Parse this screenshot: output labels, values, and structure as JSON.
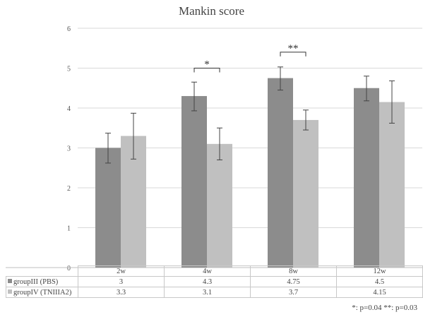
{
  "chart_data": {
    "type": "bar",
    "title": "Mankin score",
    "categories": [
      "2w",
      "4w",
      "8w",
      "12w"
    ],
    "ylim": [
      0,
      6
    ],
    "yticks": [
      "0",
      "1",
      "2",
      "3",
      "4",
      "5",
      "6"
    ],
    "grid": true,
    "series": [
      {
        "name": "groupIII (PBS)",
        "color": "#8c8c8c",
        "values": [
          3,
          4.3,
          4.75,
          4.5
        ],
        "labels": [
          "3",
          "4.3",
          "4.75",
          "4.5"
        ],
        "err_low": [
          2.62,
          3.93,
          4.45,
          4.18
        ],
        "err_high": [
          3.37,
          4.65,
          5.03,
          4.8
        ]
      },
      {
        "name": "groupIV (TNIIIA2)",
        "color": "#c0c0c0",
        "values": [
          3.3,
          3.1,
          3.7,
          4.15
        ],
        "labels": [
          "3.3",
          "3.1",
          "3.7",
          "4.15"
        ],
        "err_low": [
          2.72,
          2.7,
          3.45,
          3.62
        ],
        "err_high": [
          3.87,
          3.5,
          3.95,
          4.68
        ]
      }
    ],
    "annotations": [
      {
        "category_index": 1,
        "text": "*",
        "y": 5.0
      },
      {
        "category_index": 2,
        "text": "**",
        "y": 5.4
      }
    ]
  },
  "footnote": "*: p=0.04 **: p=0.03"
}
